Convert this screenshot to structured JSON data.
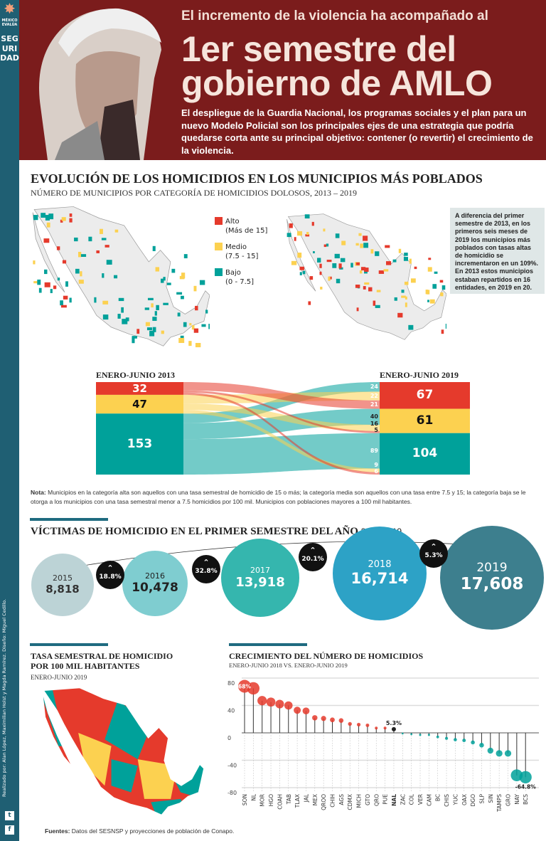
{
  "sidebar": {
    "brand": "MÉXICO EVALÚA",
    "section": "SEGURIDAD",
    "credits": "Realizado por: Alan López, Maximilian Holst y Magda Ramírez.  Diseño: Miguel Cedillo.",
    "social": [
      "twitter-icon",
      "facebook-icon"
    ]
  },
  "header": {
    "line1": "El incremento de la violencia ha acompañado al",
    "line2": "1er semestre del",
    "line3": "gobierno de AMLO",
    "paragraph": "El despliegue de la Guardia Nacional, los programas sociales y el plan para un nuevo Modelo Policial son los principales ejes de una estrategia que podría quedarse corta ante su principal objetivo: contener (o revertir) el crecimiento de la violencia."
  },
  "colors": {
    "alto": "#e53a2c",
    "medio": "#fcd150",
    "bajo": "#00a19a",
    "banner": "#7b1c1c",
    "sidebar": "#1f5f73"
  },
  "evolution": {
    "title": "EVOLUCIÓN DE LOS HOMICIDIOS EN LOS MUNICIPIOS MÁS POBLADOS",
    "subtitle": "NÚMERO DE MUNICIPIOS POR CATEGORÍA DE HOMICIDIOS DOLOSOS, 2013 – 2019",
    "legend": [
      {
        "label": "Alto",
        "range": "(Más de 15]"
      },
      {
        "label": "Medio",
        "range": "(7.5 - 15]"
      },
      {
        "label": "Bajo",
        "range": "(0 - 7.5]"
      }
    ],
    "infobox": "A diferencia del primer semestre de 2013, en los primeros seis meses de 2019 los municipios más poblados con tasas altas de homicidio se incrementaron en un 109%. En 2013 estos municipios estaban repartidos en 16 entidades, en 2019 en 20.",
    "left_label": "ENERO-JUNIO 2013",
    "right_label": "ENERO-JUNIO 2019",
    "left_totals": {
      "alto": 32,
      "medio": 47,
      "bajo": 153
    },
    "right_totals": {
      "alto": 67,
      "medio": 61,
      "bajo": 104
    },
    "flows": [
      {
        "from": "bajo",
        "to": "alto",
        "value": 24
      },
      {
        "from": "medio",
        "to": "alto",
        "value": 22
      },
      {
        "from": "alto",
        "to": "alto",
        "value": 21
      },
      {
        "from": "bajo",
        "to": "medio",
        "value": 40
      },
      {
        "from": "medio",
        "to": "medio",
        "value": 16
      },
      {
        "from": "alto",
        "to": "medio",
        "value": 5
      },
      {
        "from": "bajo",
        "to": "bajo",
        "value": 89
      },
      {
        "from": "medio",
        "to": "bajo",
        "value": 9
      },
      {
        "from": "alto",
        "to": "bajo",
        "value": 6
      }
    ],
    "note_label": "Nota:",
    "note": "Municipios en la categoría alta son aquellos con una tasa semestral de homicidio de 15 o más; la categoría media son aquellos con una tasa entre 7.5 y 15; la categoría baja se le otorga a los municipios con una tasa semestral menor a 7.5 homicidios por 100 mil. Municipios con poblaciones mayores a 100 mil habitantes."
  },
  "victims": {
    "title": "VÍCTIMAS DE HOMICIDIO EN EL PRIMER SEMESTRE DEL AÑO",
    "years_label": "2015-2019",
    "items": [
      {
        "year": "2015",
        "value": "8,818"
      },
      {
        "year": "2016",
        "value": "10,478"
      },
      {
        "year": "2017",
        "value": "13,918"
      },
      {
        "year": "2018",
        "value": "16,714"
      },
      {
        "year": "2019",
        "value": "17,608"
      }
    ],
    "changes": [
      "18.8%",
      "32.8%",
      "20.1%",
      "5.3%"
    ]
  },
  "rate_map": {
    "title_l1": "TASA SEMESTRAL DE HOMICIDIO",
    "title_l2": "POR 100 MIL HABITANTES",
    "subtitle": "ENERO-JUNIO 2019"
  },
  "chart_data": {
    "type": "lollipop",
    "title": "CRECIMIENTO DEL NÚMERO DE HOMICIDIOS",
    "subtitle": "ENERO-JUNIO 2018 VS. ENERO-JUNIO 2019",
    "ylim": [
      -80,
      80
    ],
    "yticks": [
      80,
      40,
      0,
      -40,
      -80
    ],
    "grid": true,
    "categories": [
      "SON",
      "NL",
      "MOR",
      "HGO",
      "COAH",
      "TAB",
      "TLAX",
      "JAL",
      "MEX",
      "QROO",
      "CHIH",
      "AGS",
      "CDMX",
      "MICH",
      "GTO",
      "QRO",
      "PUE",
      "NAL",
      "ZAC",
      "COL",
      "VER",
      "CAM",
      "BC",
      "CHIS",
      "YUC",
      "OAX",
      "DGO",
      "SLP",
      "SIN",
      "TAMPS",
      "GRO",
      "NAY",
      "BCS"
    ],
    "values": [
      68,
      65,
      47,
      45,
      42,
      40,
      33,
      32,
      22,
      21,
      19,
      18,
      13,
      12,
      11,
      7,
      7,
      5.3,
      -1,
      -2,
      -3,
      -3,
      -6,
      -8,
      -10,
      -11,
      -14,
      -18,
      -26,
      -30,
      -30,
      -62,
      -64.8
    ],
    "annotations": {
      "max": "68%",
      "nal": "5.3%",
      "min": "-64.8%"
    }
  },
  "footer": {
    "label": "Fuentes:",
    "text": "Datos del SESNSP y proyecciones de población de Conapo."
  }
}
